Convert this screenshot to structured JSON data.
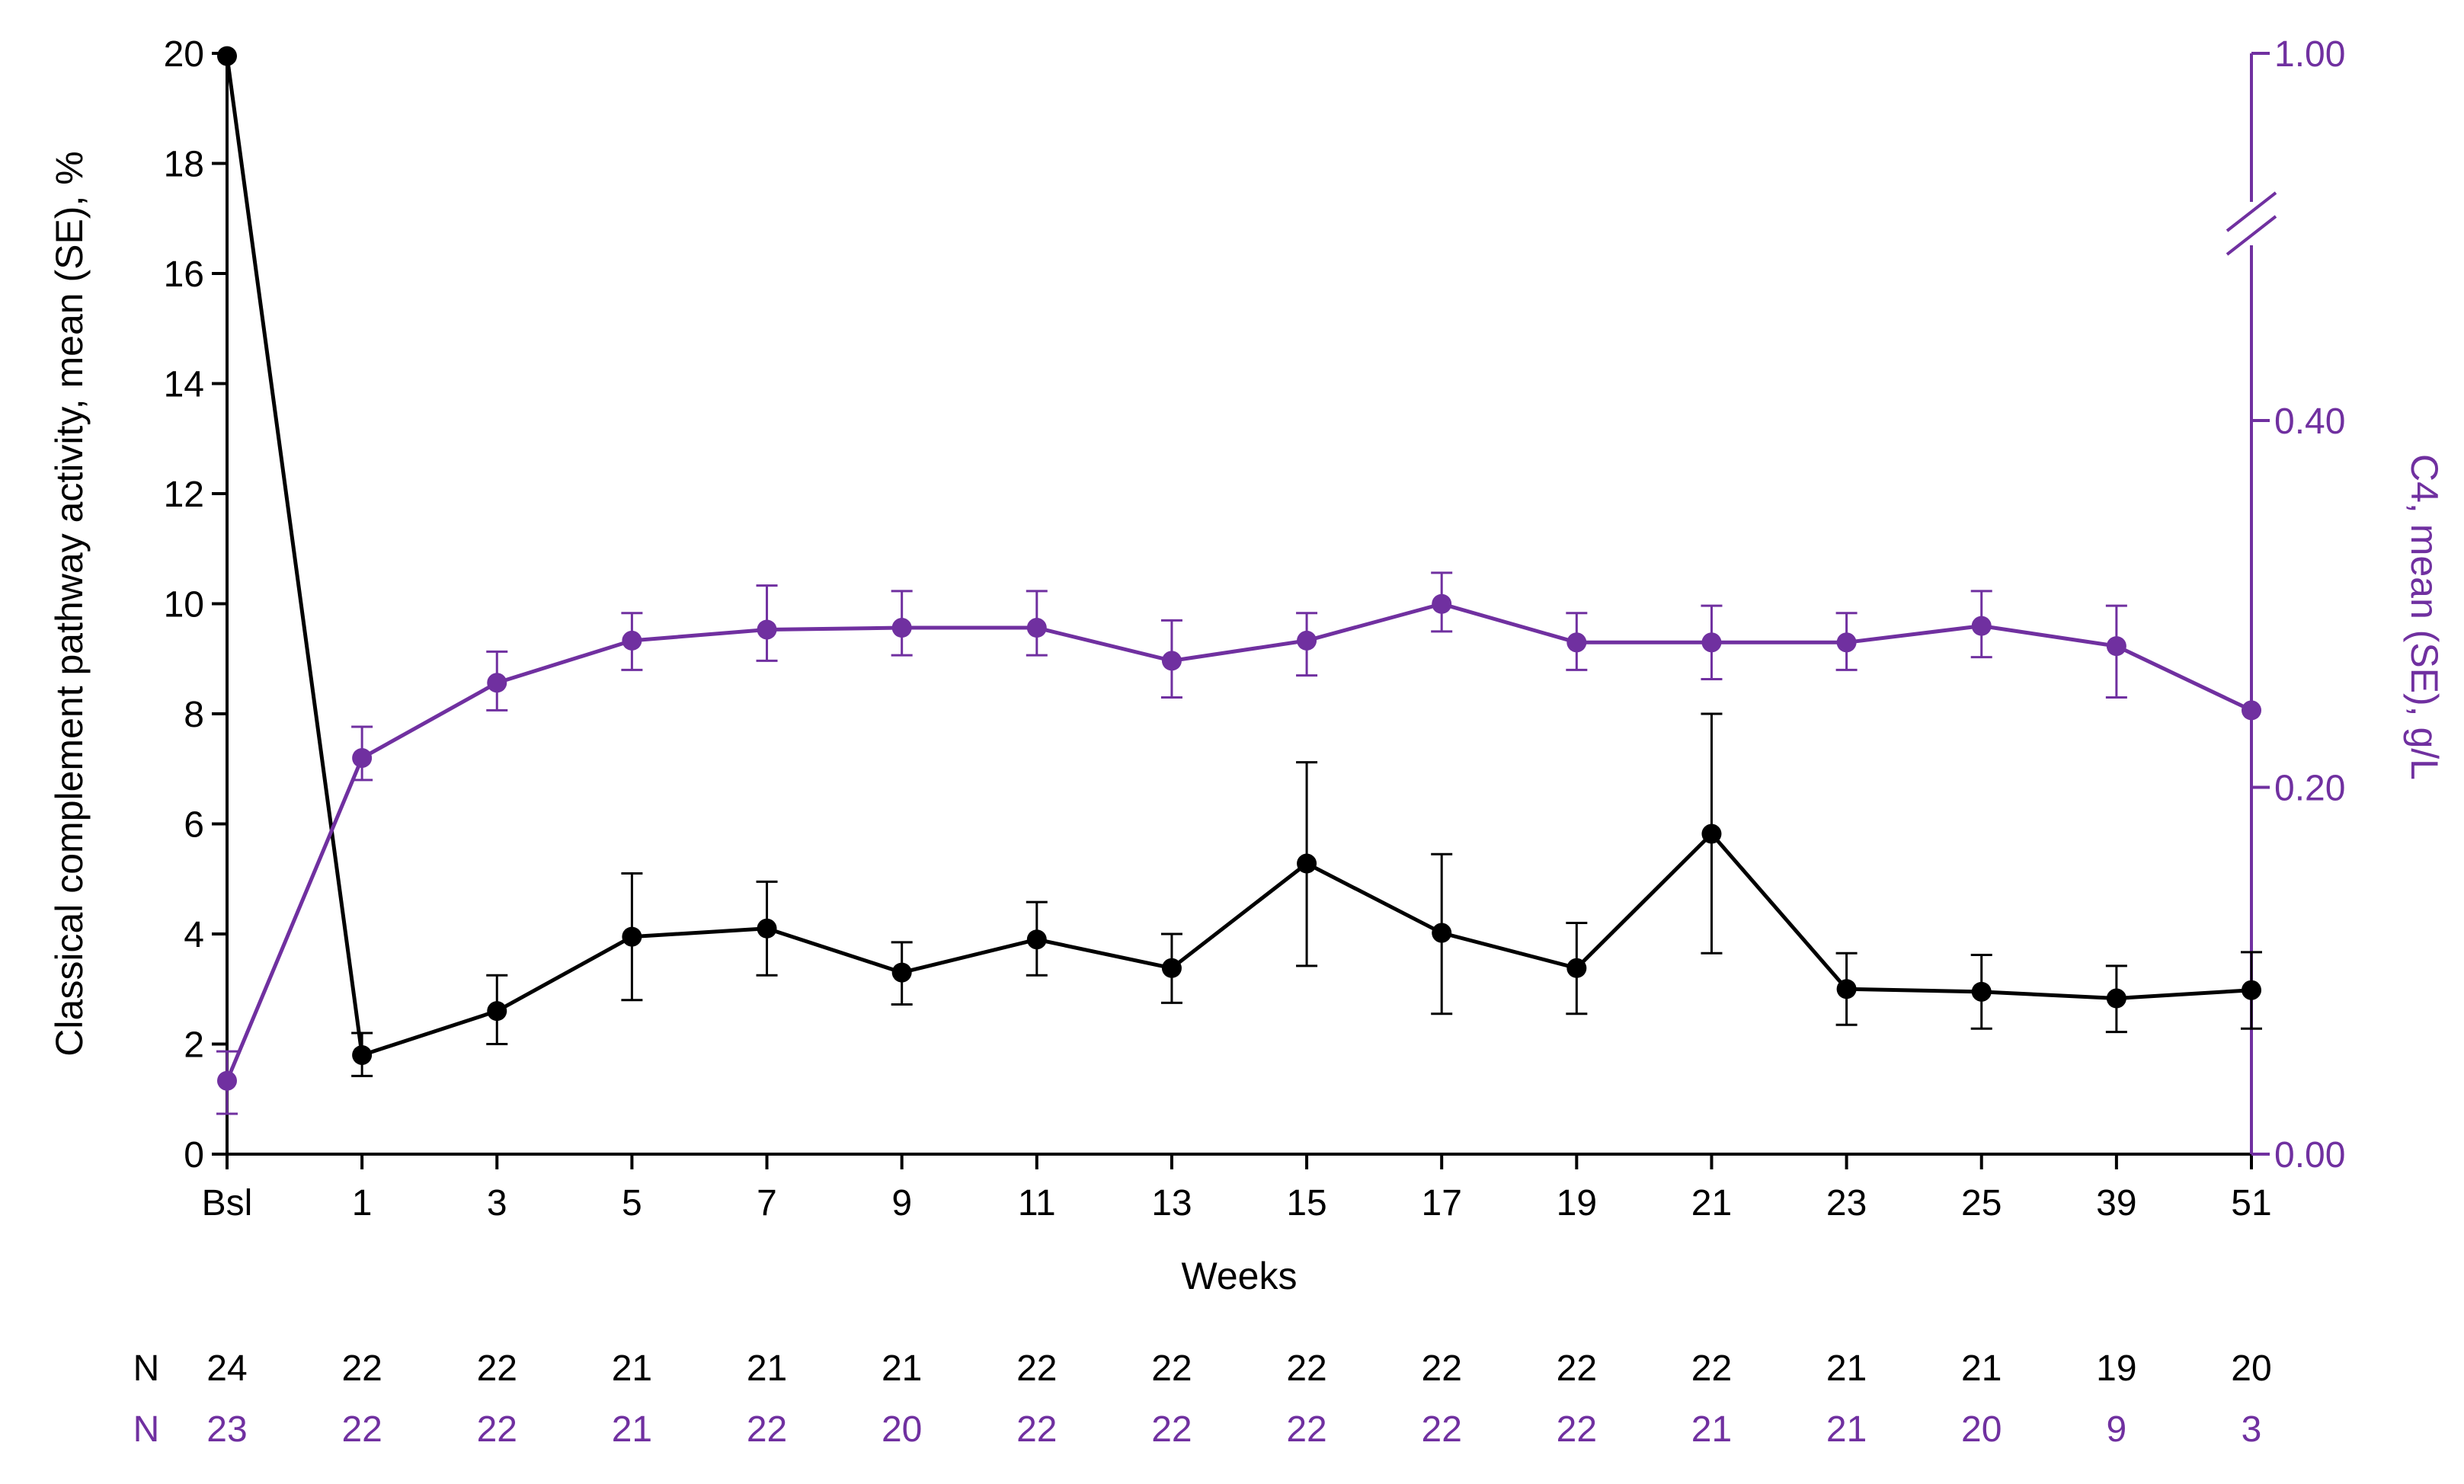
{
  "chart_data": {
    "type": "line",
    "title": "",
    "xlabel": "Weeks",
    "categories": [
      "Bsl",
      "1",
      "3",
      "5",
      "7",
      "9",
      "11",
      "13",
      "15",
      "17",
      "19",
      "21",
      "23",
      "25",
      "39",
      "51"
    ],
    "y_left": {
      "label": "Classical complement pathway activity, mean (SE), %",
      "range": [
        0,
        20
      ],
      "ticks": [
        "0",
        "2",
        "4",
        "6",
        "8",
        "10",
        "12",
        "14",
        "16",
        "18",
        "20"
      ]
    },
    "y_right": {
      "label": "C4, mean (SE), g/L",
      "ticks": [
        "0.00",
        "0.20",
        "0.40",
        "1.00"
      ],
      "axis_break": true
    },
    "grid": false,
    "series": [
      {
        "color": "#000000",
        "axis": "left",
        "values": [
          19.95,
          1.8,
          2.6,
          3.95,
          4.1,
          3.3,
          3.9,
          3.38,
          5.28,
          4.02,
          3.38,
          5.82,
          3.0,
          2.95,
          2.83,
          2.98
        ],
        "se_low": [
          null,
          1.42,
          2.0,
          2.8,
          3.25,
          2.72,
          3.25,
          2.75,
          3.42,
          2.55,
          2.55,
          3.65,
          2.35,
          2.28,
          2.22,
          2.28
        ],
        "se_high": [
          null,
          2.2,
          3.25,
          5.1,
          4.95,
          3.85,
          4.58,
          4.0,
          7.12,
          5.45,
          4.2,
          8.0,
          3.65,
          3.62,
          3.42,
          3.67
        ]
      },
      {
        "color": "#7030a0",
        "axis": "right",
        "values": [
          0.04,
          0.216,
          0.257,
          0.28,
          0.286,
          0.287,
          0.287,
          0.269,
          0.28,
          0.3,
          0.279,
          0.279,
          0.279,
          0.288,
          0.277,
          0.242
        ],
        "se_low": [
          0.022,
          0.204,
          0.242,
          0.264,
          0.269,
          0.272,
          0.272,
          0.249,
          0.261,
          0.285,
          0.264,
          0.259,
          0.264,
          0.271,
          0.249,
          null
        ],
        "se_high": [
          0.056,
          0.233,
          0.274,
          0.295,
          0.31,
          0.307,
          0.307,
          0.291,
          0.295,
          0.317,
          0.295,
          0.299,
          0.295,
          0.307,
          0.299,
          null
        ]
      }
    ],
    "n_table": {
      "rows": [
        {
          "label": "N",
          "color": "#000000",
          "values": [
            "24",
            "22",
            "22",
            "21",
            "21",
            "21",
            "22",
            "22",
            "22",
            "22",
            "22",
            "22",
            "21",
            "21",
            "19",
            "20"
          ]
        },
        {
          "label": "N",
          "color": "#7030a0",
          "values": [
            "23",
            "22",
            "22",
            "21",
            "22",
            "20",
            "22",
            "22",
            "22",
            "22",
            "22",
            "21",
            "21",
            "20",
            "9",
            "3"
          ]
        }
      ]
    }
  }
}
